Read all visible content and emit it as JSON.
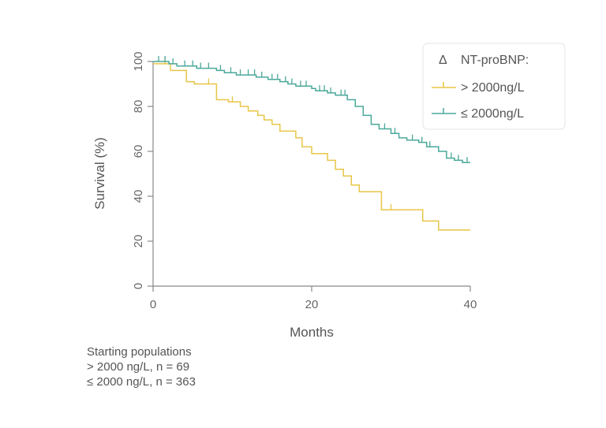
{
  "chart_data": {
    "type": "line",
    "title": "",
    "xlabel": "Months",
    "ylabel": "Survival (%)",
    "xlim": [
      0,
      40
    ],
    "ylim": [
      0,
      100
    ],
    "xticks": [
      "0",
      "20",
      "40"
    ],
    "yticks": [
      "0",
      "20",
      "40",
      "60",
      "80",
      "100"
    ],
    "legend": {
      "title": "NT-proBNP:",
      "title_symbol": "Δ",
      "position": "top-right"
    },
    "series": [
      {
        "name": "> 2000ng/L",
        "color": "#e8c547",
        "points": [
          [
            0,
            99
          ],
          [
            2.2,
            99
          ],
          [
            2.2,
            96
          ],
          [
            4.2,
            96
          ],
          [
            4.2,
            91
          ],
          [
            5.2,
            91
          ],
          [
            5.2,
            90
          ],
          [
            8,
            90
          ],
          [
            8,
            83
          ],
          [
            9.5,
            83
          ],
          [
            9.5,
            82
          ],
          [
            11,
            82
          ],
          [
            11,
            80
          ],
          [
            12,
            80
          ],
          [
            12,
            78
          ],
          [
            13.2,
            78
          ],
          [
            13.2,
            76
          ],
          [
            14,
            76
          ],
          [
            14,
            74
          ],
          [
            15,
            74
          ],
          [
            15,
            72
          ],
          [
            16,
            72
          ],
          [
            16,
            69
          ],
          [
            18,
            69
          ],
          [
            18,
            66
          ],
          [
            18.8,
            66
          ],
          [
            18.8,
            62
          ],
          [
            20,
            62
          ],
          [
            20,
            59
          ],
          [
            22,
            59
          ],
          [
            22,
            56
          ],
          [
            23,
            56
          ],
          [
            23,
            52
          ],
          [
            24,
            52
          ],
          [
            24,
            49
          ],
          [
            25,
            49
          ],
          [
            25,
            45
          ],
          [
            26,
            45
          ],
          [
            26,
            42
          ],
          [
            28.8,
            42
          ],
          [
            28.8,
            34
          ],
          [
            34,
            34
          ],
          [
            34,
            29
          ],
          [
            36,
            29
          ],
          [
            36,
            25
          ],
          [
            40,
            25
          ]
        ],
        "censors": [
          [
            1.5,
            99
          ],
          [
            7,
            90
          ],
          [
            10,
            82
          ],
          [
            30,
            34
          ]
        ]
      },
      {
        "name": "≤ 2000ng/L",
        "color": "#4aa89a",
        "points": [
          [
            0,
            100
          ],
          [
            2,
            100
          ],
          [
            2,
            99
          ],
          [
            3,
            99
          ],
          [
            3,
            98
          ],
          [
            5.5,
            98
          ],
          [
            5.5,
            97
          ],
          [
            8,
            97
          ],
          [
            8,
            96
          ],
          [
            9,
            96
          ],
          [
            9,
            95
          ],
          [
            10.5,
            95
          ],
          [
            10.5,
            94
          ],
          [
            13,
            94
          ],
          [
            13,
            93
          ],
          [
            14.5,
            93
          ],
          [
            14.5,
            92
          ],
          [
            16,
            92
          ],
          [
            16,
            91
          ],
          [
            17,
            91
          ],
          [
            17,
            90
          ],
          [
            18,
            90
          ],
          [
            18,
            89
          ],
          [
            20,
            89
          ],
          [
            20,
            88
          ],
          [
            20.5,
            88
          ],
          [
            20.5,
            87
          ],
          [
            22,
            87
          ],
          [
            22,
            86
          ],
          [
            23,
            86
          ],
          [
            23,
            85
          ],
          [
            24.5,
            85
          ],
          [
            24.5,
            83
          ],
          [
            25.5,
            83
          ],
          [
            25.5,
            80
          ],
          [
            26.5,
            80
          ],
          [
            26.5,
            76
          ],
          [
            27.5,
            76
          ],
          [
            27.5,
            72
          ],
          [
            28.5,
            72
          ],
          [
            28.5,
            70
          ],
          [
            30,
            70
          ],
          [
            30,
            68
          ],
          [
            31,
            68
          ],
          [
            31,
            66
          ],
          [
            32,
            66
          ],
          [
            32,
            65
          ],
          [
            33.5,
            65
          ],
          [
            33.5,
            64
          ],
          [
            34.5,
            64
          ],
          [
            34.5,
            62
          ],
          [
            36,
            62
          ],
          [
            36,
            60
          ],
          [
            37,
            60
          ],
          [
            37,
            57
          ],
          [
            38,
            57
          ],
          [
            38,
            56
          ],
          [
            39,
            56
          ],
          [
            39,
            55
          ],
          [
            40,
            55
          ]
        ],
        "censors": [
          [
            0.7,
            100
          ],
          [
            1.5,
            100
          ],
          [
            2.5,
            99
          ],
          [
            4,
            98
          ],
          [
            5,
            98
          ],
          [
            6,
            97
          ],
          [
            7,
            97
          ],
          [
            8.5,
            96
          ],
          [
            9.8,
            95
          ],
          [
            11,
            94
          ],
          [
            12,
            94
          ],
          [
            12.8,
            94
          ],
          [
            13.7,
            93
          ],
          [
            15,
            92
          ],
          [
            15.7,
            92
          ],
          [
            16.7,
            91
          ],
          [
            17.5,
            90
          ],
          [
            18.6,
            89
          ],
          [
            19.3,
            89
          ],
          [
            21,
            87
          ],
          [
            21.6,
            87
          ],
          [
            22.4,
            86
          ],
          [
            23.7,
            85
          ],
          [
            24.2,
            85
          ],
          [
            29.2,
            70
          ],
          [
            30.5,
            68
          ],
          [
            32.7,
            65
          ],
          [
            33.9,
            64
          ],
          [
            34.9,
            62
          ],
          [
            37.6,
            57
          ],
          [
            38.5,
            56
          ],
          [
            39.6,
            55
          ]
        ]
      }
    ]
  },
  "notes": {
    "heading": "Starting populations",
    "line1": "> 2000 ng/L, n = 69",
    "line2": "≤ 2000 ng/L, n = 363"
  }
}
